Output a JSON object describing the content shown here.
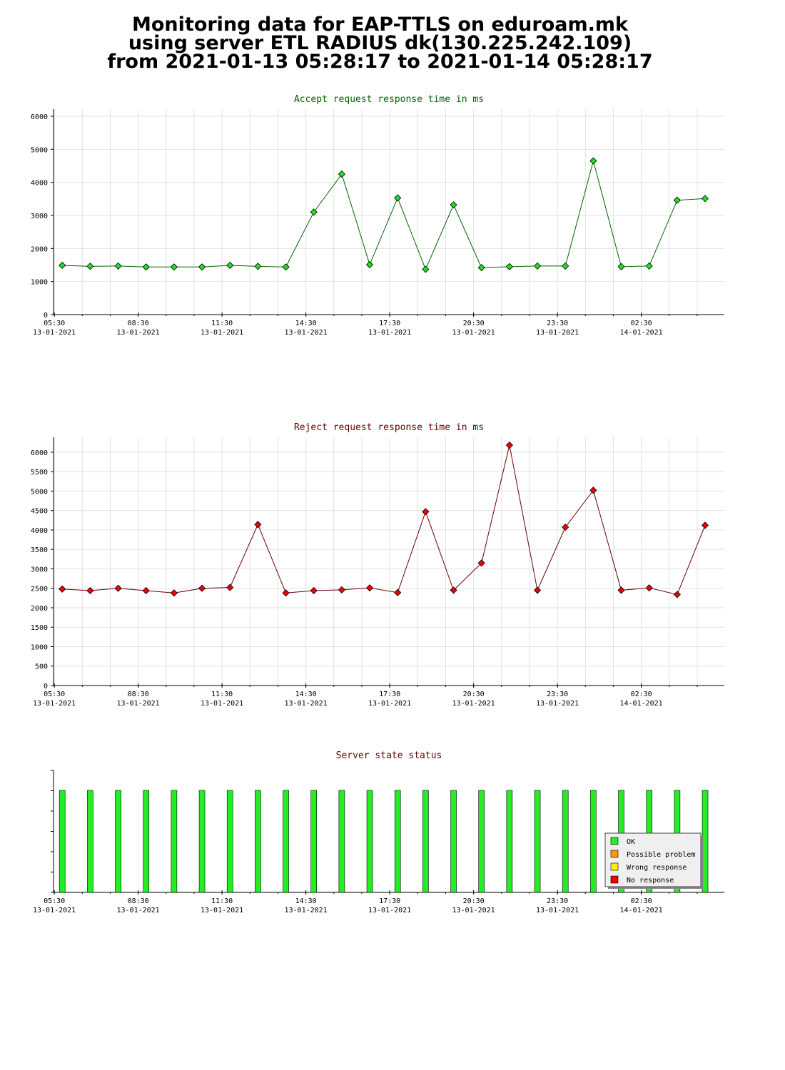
{
  "header": {
    "line1": "Monitoring data for EAP-TTLS on eduroam.mk",
    "line2": "using server ETL RADIUS dk(130.225.242.109)",
    "line3": "from 2021-01-13 05:28:17 to 2021-01-14 05:28:17"
  },
  "x_ticks": [
    {
      "time": "05:30",
      "date": "13-01-2021"
    },
    {
      "time": "08:30",
      "date": "13-01-2021"
    },
    {
      "time": "11:30",
      "date": "13-01-2021"
    },
    {
      "time": "14:30",
      "date": "13-01-2021"
    },
    {
      "time": "17:30",
      "date": "13-01-2021"
    },
    {
      "time": "20:30",
      "date": "13-01-2021"
    },
    {
      "time": "23:30",
      "date": "13-01-2021"
    },
    {
      "time": "02:30",
      "date": "14-01-2021"
    }
  ],
  "chart_data": [
    {
      "type": "line",
      "title": "Accept request response time in ms",
      "title_color": "#006400",
      "point_color": "#22dd22",
      "line_color": "#006400",
      "grid": true,
      "ylim": [
        0,
        6000
      ],
      "yticks": [
        0,
        1000,
        2000,
        3000,
        4000,
        5000,
        6000
      ],
      "x": [
        "05:47",
        "06:47",
        "07:47",
        "08:47",
        "09:47",
        "10:47",
        "11:47",
        "12:47",
        "13:47",
        "14:47",
        "15:47",
        "16:47",
        "17:47",
        "18:47",
        "19:47",
        "20:47",
        "21:47",
        "22:47",
        "23:47",
        "00:47",
        "01:47",
        "02:47",
        "03:47",
        "04:47"
      ],
      "values": [
        1490,
        1460,
        1470,
        1440,
        1440,
        1440,
        1490,
        1460,
        1440,
        3100,
        4250,
        1510,
        3530,
        1370,
        3320,
        1420,
        1450,
        1470,
        1470,
        4650,
        1450,
        1470,
        3460,
        3510
      ]
    },
    {
      "type": "line",
      "title": "Reject request response time in ms",
      "title_color": "#660000",
      "point_color": "#ee0000",
      "line_color": "#660000",
      "grid": true,
      "ylim": [
        0,
        6200
      ],
      "yticks": [
        0,
        500,
        1000,
        1500,
        2000,
        2500,
        3000,
        3500,
        4000,
        4500,
        5000,
        5500,
        6000
      ],
      "x": [
        "05:47",
        "06:47",
        "07:47",
        "08:47",
        "09:47",
        "10:47",
        "11:47",
        "12:47",
        "13:47",
        "14:47",
        "15:47",
        "16:47",
        "17:47",
        "18:47",
        "19:47",
        "20:47",
        "21:47",
        "22:47",
        "23:47",
        "00:47",
        "01:47",
        "02:47",
        "03:47",
        "04:47"
      ],
      "values": [
        2480,
        2440,
        2500,
        2440,
        2380,
        2500,
        2520,
        4140,
        2380,
        2440,
        2460,
        2510,
        2390,
        4470,
        2450,
        3150,
        6180,
        2450,
        4070,
        5020,
        2450,
        2510,
        2340,
        4120
      ]
    },
    {
      "type": "bar",
      "title": "Server state status",
      "title_color": "#660000",
      "x": [
        "05:47",
        "06:47",
        "07:47",
        "08:47",
        "09:47",
        "10:47",
        "11:47",
        "12:47",
        "13:47",
        "14:47",
        "15:47",
        "16:47",
        "17:47",
        "18:47",
        "19:47",
        "20:47",
        "21:47",
        "22:47",
        "23:47",
        "00:47",
        "01:47",
        "02:47",
        "03:47",
        "04:47"
      ],
      "values": [
        "OK",
        "OK",
        "OK",
        "OK",
        "OK",
        "OK",
        "OK",
        "OK",
        "OK",
        "OK",
        "OK",
        "OK",
        "OK",
        "OK",
        "OK",
        "OK",
        "OK",
        "OK",
        "OK",
        "OK",
        "OK",
        "OK",
        "OK",
        "OK"
      ],
      "legend_position": "bottom-right",
      "legend": [
        {
          "label": "OK",
          "color": "#22ee22"
        },
        {
          "label": "Possible problem",
          "color": "#ff9900"
        },
        {
          "label": "Wrong response",
          "color": "#ffee00"
        },
        {
          "label": "No response",
          "color": "#ee0000"
        }
      ]
    }
  ]
}
